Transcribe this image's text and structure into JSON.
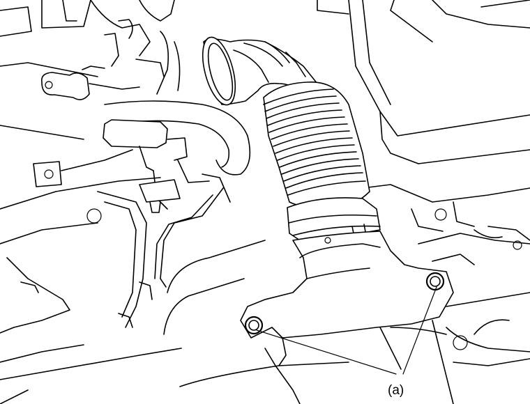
{
  "callouts": {
    "a": {
      "label": "(a)"
    }
  },
  "colors": {
    "line": "#000000",
    "background": "#ffffff"
  }
}
